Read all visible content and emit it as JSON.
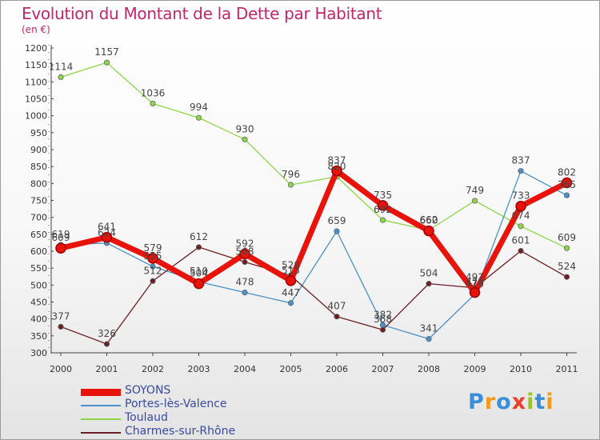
{
  "title": "Evolution du Montant de la Dette par Habitant",
  "subtitle": "(en €)",
  "logo": {
    "text": "Proxiti",
    "colors": [
      "#3b8fd8",
      "#f39a1c",
      "#3b8fd8",
      "#e8402b",
      "#9ac42f",
      "#3b8fd8",
      "#f39a1c"
    ]
  },
  "chart_data": {
    "type": "line",
    "categories": [
      "2000",
      "2001",
      "2002",
      "2003",
      "2004",
      "2005",
      "2006",
      "2007",
      "2008",
      "2009",
      "2010",
      "2011"
    ],
    "ylim": [
      300,
      1200
    ],
    "yticks": [
      300,
      350,
      400,
      450,
      500,
      550,
      600,
      650,
      700,
      750,
      800,
      850,
      900,
      950,
      1000,
      1050,
      1100,
      1150,
      1200
    ],
    "grid": false,
    "legend_position": "bottom-left",
    "series": [
      {
        "name": "SOYONS",
        "color": "#e8140c",
        "values": [
          609,
          641,
          579,
          504,
          592,
          513,
          837,
          735,
          660,
          478,
          733,
          802
        ]
      },
      {
        "name": "Portes-lès-Valence",
        "color": "#4a90c9",
        "values": [
          619,
          624,
          555,
          510,
          478,
          447,
          659,
          382,
          341,
          473,
          837,
          765
        ]
      },
      {
        "name": "Toulaud",
        "color": "#8fd647",
        "values": [
          1114,
          1157,
          1036,
          994,
          930,
          796,
          820,
          692,
          662,
          749,
          674,
          609
        ]
      },
      {
        "name": "Charmes-sur-Rhône",
        "color": "#6b1f25",
        "values": [
          377,
          326,
          512,
          612,
          568,
          528,
          407,
          368,
          504,
          492,
          601,
          524
        ]
      }
    ]
  }
}
